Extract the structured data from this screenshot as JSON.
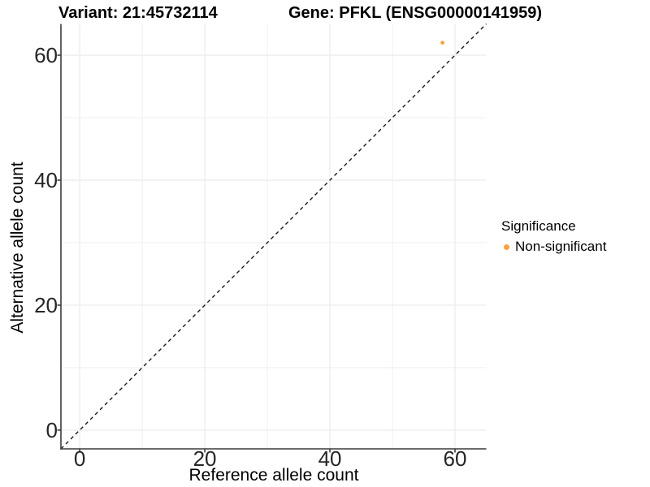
{
  "chart_data": {
    "type": "scatter",
    "title_left": "Variant: 21:45732114",
    "title_right": "Gene: PFKL (ENSG00000141959)",
    "xlabel": "Reference allele count",
    "ylabel": "Alternative allele count",
    "xlim": [
      -3,
      65
    ],
    "ylim": [
      -3,
      65
    ],
    "xticks": [
      0,
      20,
      40,
      60
    ],
    "yticks": [
      0,
      20,
      40,
      60
    ],
    "grid": true,
    "grid_step": 10,
    "identity_line": {
      "equation": "y = x",
      "style": "dashed",
      "color": "#1a1a1a"
    },
    "series": [
      {
        "name": "Non-significant",
        "color": "#F9A242",
        "points": [
          {
            "x": 58,
            "y": 62
          }
        ]
      }
    ],
    "legend": {
      "title": "Significance",
      "position": "right",
      "entries": [
        {
          "label": "Non-significant",
          "color": "#F9A242"
        }
      ]
    }
  },
  "colors": {
    "background": "#FFFFFF",
    "grid": "#EBEBEB",
    "axis": "#3C3C3C",
    "tick_text": "#262626",
    "point": "#F9A242"
  }
}
